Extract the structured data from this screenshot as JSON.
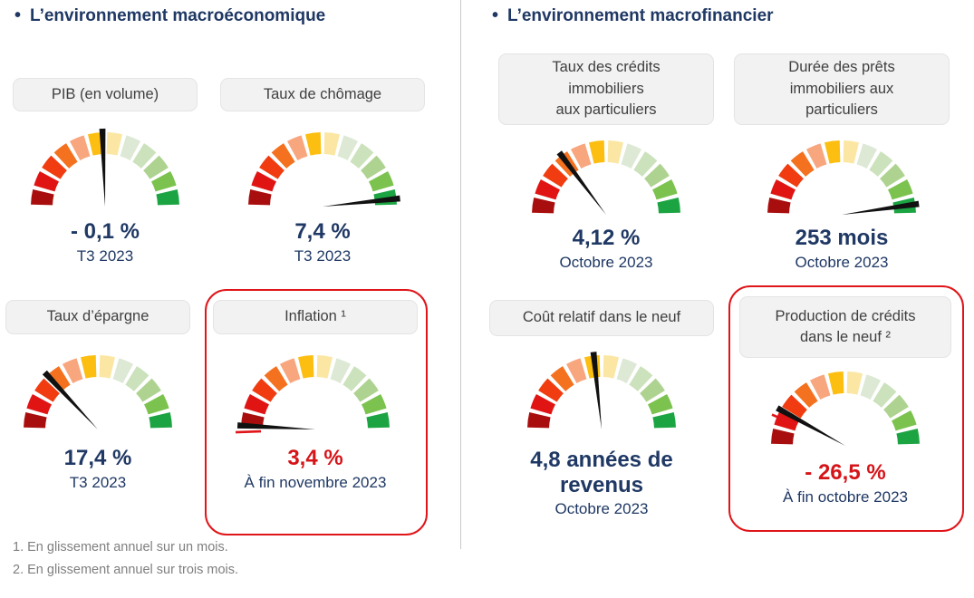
{
  "colors": {
    "heading_navy": "#1f3864",
    "value_navy": "#1f3864",
    "value_red": "#d51419",
    "highlight_border_red": "#e01519",
    "label_text_gray": "#3f3f3f",
    "label_bg_gray": "#f2f2f2",
    "footnote_gray": "#7f7f7f",
    "needle_black": "#111111",
    "segment_colors": [
      "#a90e0e",
      "#e11414",
      "#f03c10",
      "#f4711f",
      "#f8a67e",
      "#fcbe10",
      "#fbe7a3",
      "#dde9d5",
      "#cbe2bc",
      "#aed391",
      "#7cc24f",
      "#1ca443"
    ]
  },
  "sections": [
    {
      "bullet": "•",
      "title": "L’environnement macroéconomique",
      "cards": [
        {
          "label": "PIB (en volume)",
          "value": "- 0,1 %",
          "period": "T3 2023",
          "needle_deg": 92
        },
        {
          "label": "Taux de chômage",
          "value": "7,4 %",
          "period": "T3 2023",
          "needle_deg": 6
        },
        {
          "label": "Taux d’épargne",
          "value": "17,4 %",
          "period": "T3 2023",
          "needle_deg": 133
        },
        {
          "label": "Inflation ¹",
          "value": "3,4 %",
          "period": "À fin novembre 2023",
          "needle_deg": 177,
          "marker_deg": 182,
          "highlighted": true
        }
      ]
    },
    {
      "bullet": "•",
      "title": "L’environnement macrofinancier",
      "cards": [
        {
          "label": "Taux des crédits\nimmobiliers\naux particuliers",
          "value": "4,12 %",
          "period": "Octobre 2023",
          "needle_deg": 127
        },
        {
          "label": "Durée des prêts\nimmobiliers aux\nparticuliers",
          "value": "253 mois",
          "period": "Octobre 2023",
          "needle_deg": 8
        },
        {
          "label": "Coût relatif dans le neuf",
          "value": "4,8 années de\nrevenus",
          "period": "Octobre 2023",
          "needle_deg": 96
        },
        {
          "label": "Production de crédits\ndans le neuf ²",
          "value": "- 26,5 %",
          "period": "À fin octobre 2023",
          "needle_deg": 151,
          "marker_deg": 157,
          "highlighted": true
        }
      ]
    }
  ],
  "footnotes": [
    "1. En glissement annuel sur un mois.",
    "2. En glissement annuel sur trois mois."
  ],
  "chart_data": [
    {
      "type": "gauge",
      "title": "PIB (en volume)",
      "value": -0.1,
      "unit": "%",
      "value_text": "- 0,1 %",
      "period": "T3 2023",
      "needle_deg_from_east": 92,
      "scale": "semicircle, 12 segments, red (left, unfavorable) to green (right, favorable)"
    },
    {
      "type": "gauge",
      "title": "Taux de chômage",
      "value": 7.4,
      "unit": "%",
      "value_text": "7,4 %",
      "period": "T3 2023",
      "needle_deg_from_east": 6,
      "scale": "semicircle, 12 segments, red to green"
    },
    {
      "type": "gauge",
      "title": "Taux d’épargne",
      "value": 17.4,
      "unit": "%",
      "value_text": "17,4 %",
      "period": "T3 2023",
      "needle_deg_from_east": 133,
      "scale": "semicircle, 12 segments, red to green"
    },
    {
      "type": "gauge",
      "title": "Inflation",
      "value": 3.4,
      "unit": "%",
      "value_text": "3,4 %",
      "period": "À fin novembre 2023",
      "needle_deg_from_east": 177,
      "previous_marker_deg": 182,
      "highlighted": true,
      "scale": "semicircle, 12 segments, red to green"
    },
    {
      "type": "gauge",
      "title": "Taux des crédits immobiliers aux particuliers",
      "value": 4.12,
      "unit": "%",
      "value_text": "4,12 %",
      "period": "Octobre 2023",
      "needle_deg_from_east": 127,
      "scale": "semicircle, 12 segments, red to green"
    },
    {
      "type": "gauge",
      "title": "Durée des prêts immobiliers aux particuliers",
      "value": 253,
      "unit": "mois",
      "value_text": "253 mois",
      "period": "Octobre 2023",
      "needle_deg_from_east": 8,
      "scale": "semicircle, 12 segments, red to green"
    },
    {
      "type": "gauge",
      "title": "Coût relatif dans le neuf",
      "value": 4.8,
      "unit": "années de revenus",
      "value_text": "4,8 années de revenus",
      "period": "Octobre 2023",
      "needle_deg_from_east": 96,
      "scale": "semicircle, 12 segments, red to green"
    },
    {
      "type": "gauge",
      "title": "Production de crédits dans le neuf",
      "value": -26.5,
      "unit": "%",
      "value_text": "- 26,5 %",
      "period": "À fin octobre 2023",
      "needle_deg_from_east": 151,
      "previous_marker_deg": 157,
      "highlighted": true,
      "scale": "semicircle, 12 segments, red to green"
    }
  ]
}
